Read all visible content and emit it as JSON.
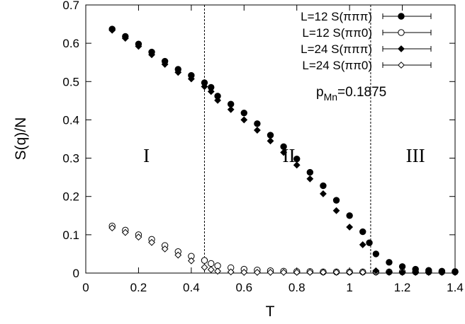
{
  "chart_data": {
    "type": "scatter",
    "xlabel": "T",
    "ylabel": "S(q)/N",
    "xlim": [
      0,
      1.4
    ],
    "ylim": [
      0,
      0.7
    ],
    "x_ticks": [
      "0",
      "0.2",
      "0.4",
      "0.6",
      "0.8",
      "1",
      "1.2",
      "1.4"
    ],
    "y_ticks": [
      "0",
      "0.1",
      "0.2",
      "0.3",
      "0.4",
      "0.5",
      "0.6",
      "0.7"
    ],
    "legend_position": "top-right",
    "vertical_lines": [
      0.45,
      1.08
    ],
    "annotation": {
      "prefix": "p",
      "subscript": "Mn",
      "suffix": "=0.1875"
    },
    "region_labels": [
      {
        "text": "I",
        "x": 0.23,
        "y": 0.29
      },
      {
        "text": "II",
        "x": 0.77,
        "y": 0.29
      },
      {
        "text": "III",
        "x": 1.25,
        "y": 0.29
      }
    ],
    "series": [
      {
        "name": "L=12 S(πππ)",
        "marker": "filled-circle",
        "x": [
          0.1,
          0.15,
          0.2,
          0.25,
          0.3,
          0.35,
          0.4,
          0.45,
          0.475,
          0.5,
          0.55,
          0.6,
          0.65,
          0.7,
          0.75,
          0.8,
          0.85,
          0.9,
          0.95,
          1.0,
          1.05,
          1.075,
          1.1,
          1.15,
          1.2,
          1.25,
          1.3,
          1.35,
          1.4
        ],
        "y": [
          0.637,
          0.618,
          0.598,
          0.577,
          0.553,
          0.532,
          0.516,
          0.497,
          0.485,
          0.462,
          0.441,
          0.418,
          0.39,
          0.36,
          0.33,
          0.298,
          0.263,
          0.228,
          0.19,
          0.15,
          0.108,
          0.079,
          0.05,
          0.028,
          0.017,
          0.01,
          0.007,
          0.005,
          0.004
        ]
      },
      {
        "name": "L=12 S(ππ0)",
        "marker": "open-circle",
        "x": [
          0.1,
          0.15,
          0.2,
          0.25,
          0.3,
          0.35,
          0.4,
          0.45,
          0.475,
          0.5,
          0.55,
          0.6,
          0.65,
          0.7,
          0.75,
          0.8,
          0.85,
          0.9,
          0.95,
          1.0,
          1.05,
          1.1,
          1.15,
          1.2,
          1.25,
          1.3,
          1.35,
          1.4
        ],
        "y": [
          0.123,
          0.112,
          0.1,
          0.088,
          0.072,
          0.056,
          0.044,
          0.033,
          0.025,
          0.019,
          0.014,
          0.01,
          0.008,
          0.006,
          0.005,
          0.004,
          0.004,
          0.003,
          0.003,
          0.003,
          0.003,
          0.003,
          0.003,
          0.003,
          0.003,
          0.003,
          0.003,
          0.003
        ]
      },
      {
        "name": "L=24 S(πππ)",
        "marker": "filled-diamond",
        "x": [
          0.1,
          0.15,
          0.2,
          0.25,
          0.3,
          0.35,
          0.4,
          0.45,
          0.475,
          0.5,
          0.55,
          0.6,
          0.65,
          0.7,
          0.75,
          0.8,
          0.85,
          0.9,
          0.95,
          1.0,
          1.05,
          1.1,
          1.15,
          1.2,
          1.25,
          1.3,
          1.35,
          1.4
        ],
        "y": [
          0.634,
          0.613,
          0.592,
          0.57,
          0.545,
          0.524,
          0.507,
          0.487,
          0.474,
          0.451,
          0.427,
          0.4,
          0.373,
          0.345,
          0.315,
          0.282,
          0.246,
          0.207,
          0.163,
          0.12,
          0.074,
          0.006,
          0.003,
          0.002,
          0.002,
          0.002,
          0.002,
          0.002
        ]
      },
      {
        "name": "L=24 S(ππ0)",
        "marker": "open-diamond",
        "x": [
          0.1,
          0.15,
          0.2,
          0.25,
          0.3,
          0.35,
          0.4,
          0.45,
          0.475,
          0.5,
          0.55,
          0.6,
          0.65,
          0.7,
          0.75,
          0.8,
          0.85,
          0.9,
          0.95,
          1.0,
          1.05,
          1.1,
          1.15,
          1.2,
          1.25,
          1.3,
          1.35,
          1.4
        ],
        "y": [
          0.118,
          0.106,
          0.094,
          0.08,
          0.063,
          0.047,
          0.032,
          0.015,
          0.009,
          0.005,
          0.003,
          0.002,
          0.002,
          0.002,
          0.002,
          0.002,
          0.002,
          0.002,
          0.002,
          0.002,
          0.002,
          0.002,
          0.002,
          0.002,
          0.002,
          0.002,
          0.002,
          0.002
        ]
      }
    ]
  }
}
